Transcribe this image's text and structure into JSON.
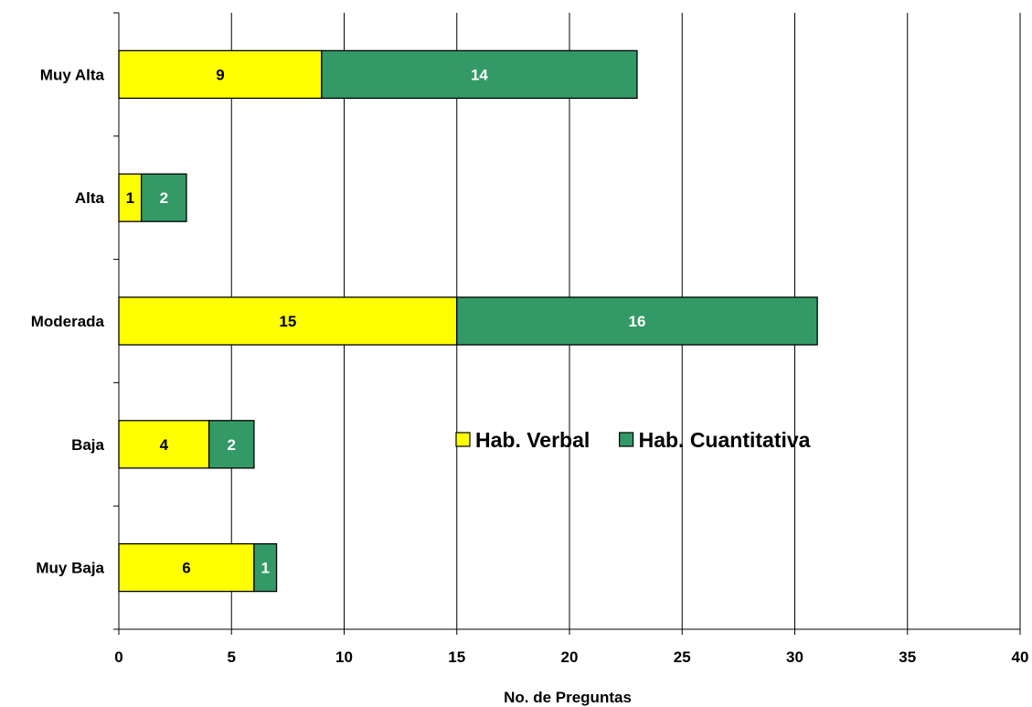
{
  "chart_data": {
    "type": "bar",
    "orientation": "horizontal",
    "stacked": true,
    "categories": [
      "Muy Alta",
      "Alta",
      "Moderada",
      "Baja",
      "Muy Baja"
    ],
    "series": [
      {
        "name": "Hab. Verbal",
        "values": [
          9,
          1,
          15,
          4,
          6
        ],
        "color": "#ffff00",
        "label_color": "#000000"
      },
      {
        "name": "Hab. Cuantitativa",
        "values": [
          14,
          2,
          16,
          2,
          1
        ],
        "color": "#339966",
        "label_color": "#ffffff"
      }
    ],
    "xlabel": "No. de Preguntas",
    "ylabel": "",
    "title": "",
    "xlim": [
      0,
      40
    ],
    "xticks": [
      0,
      5,
      10,
      15,
      20,
      25,
      30,
      35,
      40
    ],
    "grid": "vertical",
    "legend_position": "center-right"
  }
}
